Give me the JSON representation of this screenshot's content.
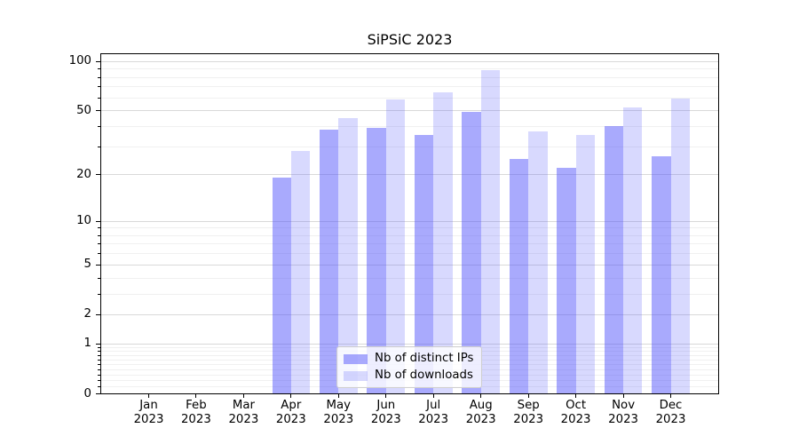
{
  "title": "SiPSiC 2023",
  "chart_data": {
    "type": "bar",
    "title": "SiPSiC 2023",
    "categories": [
      "Jan",
      "Feb",
      "Mar",
      "Apr",
      "May",
      "Jun",
      "Jul",
      "Aug",
      "Sep",
      "Oct",
      "Nov",
      "Dec"
    ],
    "x_tick_year": "2023",
    "series": [
      {
        "name": "Nb of distinct IPs",
        "color": "rgba(72,74,250,0.47)",
        "values": [
          0,
          0,
          0,
          19,
          38,
          39,
          35,
          49,
          25,
          22,
          40,
          26
        ]
      },
      {
        "name": "Nb of downloads",
        "color": "rgba(72,74,250,0.21)",
        "values": [
          0,
          0,
          0,
          28,
          45,
          58,
          64,
          88,
          37,
          35,
          52,
          59
        ]
      }
    ],
    "yscale": "log1p",
    "ylim": [
      0,
      110
    ],
    "yticks": [
      0,
      1,
      2,
      5,
      10,
      20,
      50,
      100
    ],
    "minor_yticks": [
      0.1,
      0.2,
      0.3,
      0.4,
      0.5,
      0.6,
      0.7,
      0.8,
      0.9,
      3,
      4,
      6,
      7,
      8,
      9,
      30,
      40,
      60,
      70,
      80,
      90
    ],
    "grid": true,
    "legend_position": "lower center",
    "colors": {
      "grid_major": "#d9d9d9",
      "grid_minor": "#f0f0f0",
      "spine": "#000000",
      "text": "#000000"
    }
  }
}
